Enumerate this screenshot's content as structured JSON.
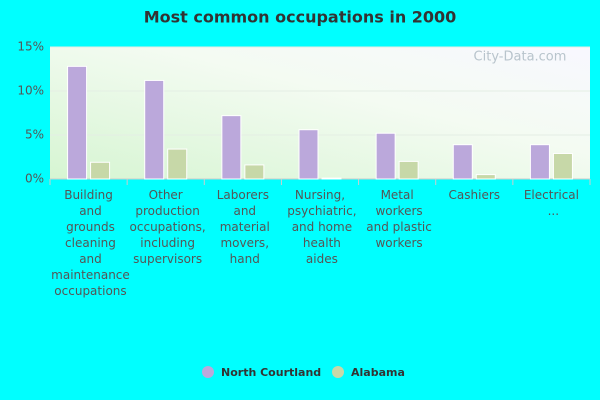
{
  "chart_data": {
    "type": "bar",
    "title": "Most common occupations in 2000",
    "watermark": "City-Data.com",
    "categories": [
      "Building and grounds cleaning and maintenance occupations",
      "Other production occupations, including supervisors",
      "Laborers and material movers, hand",
      "Nursing, psychiatric, and home health aides",
      "Metal workers and plastic workers",
      "Cashiers",
      "Electrical ..."
    ],
    "series": [
      {
        "name": "North Courtland",
        "color": "#bba8db",
        "values": [
          12.8,
          11.2,
          7.2,
          5.6,
          5.2,
          3.9,
          3.9
        ]
      },
      {
        "name": "Alabama",
        "color": "#c7d8a8",
        "values": [
          1.9,
          3.4,
          1.6,
          0.1,
          2.0,
          0.5,
          2.9
        ]
      }
    ],
    "ylim": [
      0,
      15
    ],
    "yticks": [
      {
        "value": 0,
        "label": "0%"
      },
      {
        "value": 5,
        "label": "5%"
      },
      {
        "value": 10,
        "label": "10%"
      },
      {
        "value": 15,
        "label": "15%"
      }
    ],
    "grid": true
  }
}
